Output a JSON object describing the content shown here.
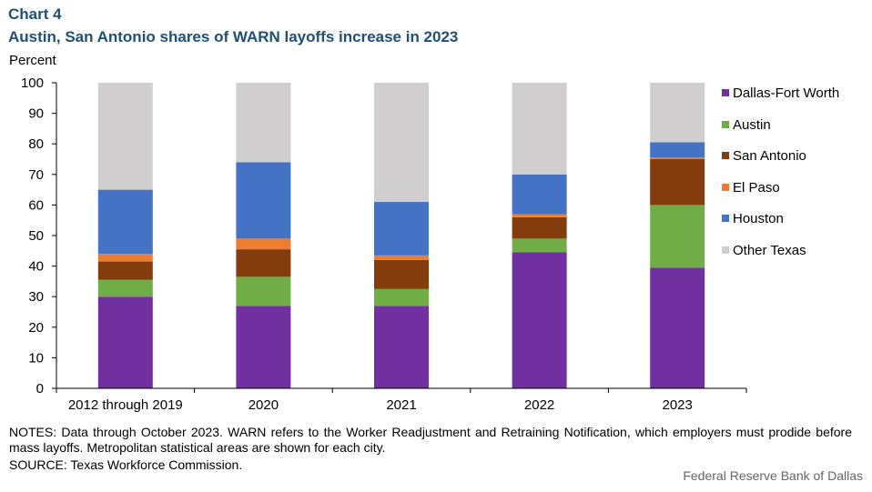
{
  "header": {
    "label": "Chart 4",
    "title": "Austin, San Antonio shares of WARN layoffs increase in 2023"
  },
  "chart_data": {
    "type": "bar",
    "stacked": true,
    "ylabel": "Percent",
    "ylim": [
      0,
      100
    ],
    "yticks": [
      0,
      10,
      20,
      30,
      40,
      50,
      60,
      70,
      80,
      90,
      100
    ],
    "categories": [
      "2012 through 2019",
      "2020",
      "2021",
      "2022",
      "2023"
    ],
    "series": [
      {
        "name": "Dallas-Fort Worth",
        "color": "#7030a0",
        "values": [
          30,
          27,
          27,
          44.5,
          39.5
        ]
      },
      {
        "name": "Austin",
        "color": "#70ad47",
        "values": [
          5.5,
          9.5,
          5.5,
          4.5,
          20.5
        ]
      },
      {
        "name": "San Antonio",
        "color": "#843c0c",
        "values": [
          6,
          9,
          9.5,
          7,
          15
        ]
      },
      {
        "name": "El Paso",
        "color": "#ed7d31",
        "values": [
          2.5,
          3.5,
          1.5,
          1,
          0.5
        ]
      },
      {
        "name": "Houston",
        "color": "#4472c4",
        "values": [
          21,
          25,
          17.5,
          13,
          5
        ]
      },
      {
        "name": "Other Texas",
        "color": "#d0cece",
        "values": [
          35,
          26,
          39,
          30,
          19.5
        ]
      }
    ],
    "legend_position": "right",
    "grid": false
  },
  "footer": {
    "notes": "NOTES: Data through October 2023. WARN refers to the Worker Readjustment and Retraining Notification, which employers must prodide before mass layoffs. Metropolitan statistical areas are shown for each city.",
    "source": "SOURCE: Texas Workforce Commission.",
    "credit": "Federal Reserve Bank of Dallas"
  }
}
